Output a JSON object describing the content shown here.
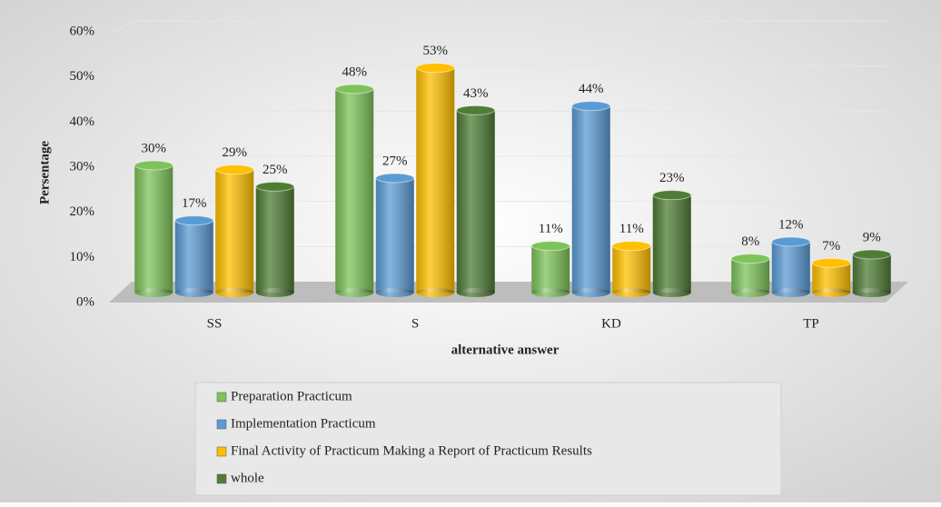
{
  "chart_data": {
    "type": "bar",
    "x_label": "alternative answer",
    "y_label": "Persentage",
    "categories": [
      "SS",
      "S",
      "KD",
      "TP"
    ],
    "series": [
      {
        "name": "Preparation Practicum",
        "color": "#7dc35a",
        "values": [
          30,
          48,
          11,
          8
        ],
        "value_labels": [
          "30%",
          "48%",
          "11%",
          "8%"
        ]
      },
      {
        "name": "Implementation Practicum",
        "color": "#5b9bd5",
        "values": [
          17,
          27,
          44,
          12
        ],
        "value_labels": [
          "17%",
          "27%",
          "44%",
          "12%"
        ]
      },
      {
        "name": "Final Activity of Practicum Making a Report of Practicum Results",
        "color": "#ffc000",
        "values": [
          29,
          53,
          11,
          7
        ],
        "value_labels": [
          "29%",
          "53%",
          "11%",
          "7%"
        ]
      },
      {
        "name": "whole",
        "color": "#4f7d36",
        "values": [
          25,
          43,
          23,
          9
        ],
        "value_labels": [
          "25%",
          "43%",
          "23%",
          "9%"
        ]
      }
    ],
    "ylim": [
      0,
      60
    ],
    "yticks": [
      {
        "value": 0,
        "label": "0%"
      },
      {
        "value": 10,
        "label": "10%"
      },
      {
        "value": 20,
        "label": "20%"
      },
      {
        "value": 30,
        "label": "30%"
      },
      {
        "value": 40,
        "label": "40%"
      },
      {
        "value": 50,
        "label": "50%"
      },
      {
        "value": 60,
        "label": "60%"
      }
    ],
    "grid": true
  }
}
